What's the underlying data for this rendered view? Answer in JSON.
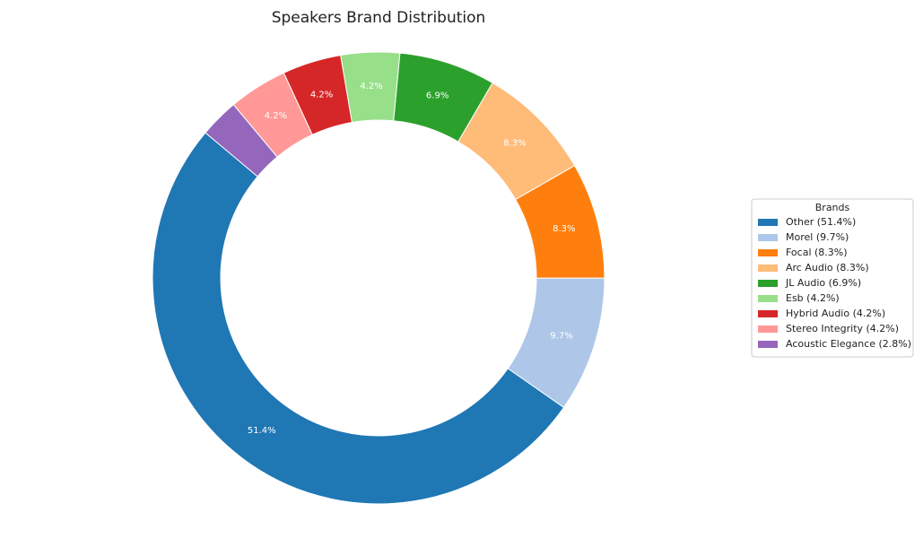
{
  "chart_data": {
    "type": "donut",
    "title": "Speakers Brand Distribution",
    "categories": [
      "Other",
      "Morel",
      "Focal",
      "Arc Audio",
      "JL Audio",
      "Esb",
      "Hybrid Audio",
      "Stereo Integrity",
      "Acoustic Elegance"
    ],
    "values": [
      51.4,
      9.7,
      8.3,
      8.3,
      6.9,
      4.2,
      4.2,
      4.2,
      2.8
    ],
    "value_labels": [
      "51.4%",
      "9.7%",
      "8.3%",
      "8.3%",
      "6.9%",
      "4.2%",
      "4.2%",
      "4.2%",
      "2.8%"
    ],
    "colors": [
      "#1f77b4",
      "#aec7e8",
      "#ff7f0e",
      "#ffbb78",
      "#2ca02c",
      "#98df8a",
      "#d62728",
      "#ff9896",
      "#9467bd"
    ],
    "legend_title": "Brands",
    "legend_labels": [
      "Other (51.4%)",
      "Morel (9.7%)",
      "Focal (8.3%)",
      "Arc Audio (8.3%)",
      "JL Audio (6.9%)",
      "Esb (4.2%)",
      "Hybrid Audio (4.2%)",
      "Stereo Integrity (4.2%)",
      "Acoustic Elegance (2.8%)"
    ],
    "legend_position": "right"
  }
}
